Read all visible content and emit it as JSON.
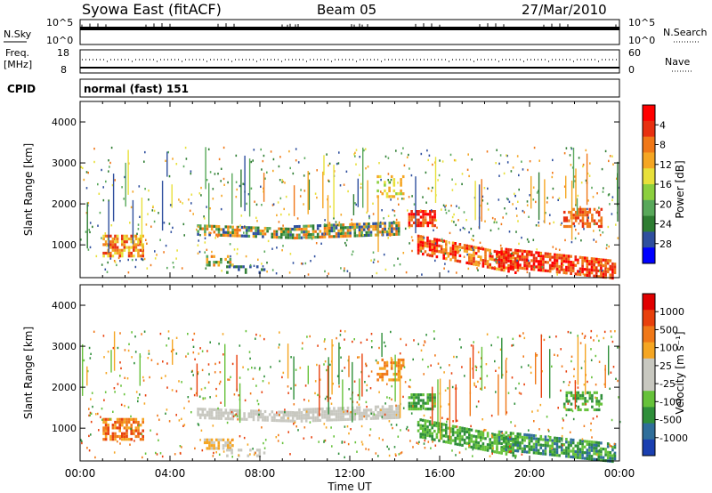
{
  "header": {
    "title": "Syowa East (fitACF)",
    "beam": "Beam 05",
    "date": "27/Mar/2010"
  },
  "noise_panel": {
    "left_label": "N.Sky",
    "right_label": "N.Search",
    "left_ticks": [
      "10^5",
      "10^0"
    ],
    "right_ticks": [
      "10^5",
      "10^0"
    ]
  },
  "freq_panel": {
    "left_label_line1": "Freq.",
    "left_label_line2": "[MHz]",
    "left_ticks": [
      "18",
      "8"
    ],
    "right_ticks": [
      "60",
      "0"
    ],
    "right_label": "Nave"
  },
  "cpid_panel": {
    "left_label": "CPID",
    "value": "normal (fast) 151"
  },
  "chart_data": [
    {
      "type": "heatmap",
      "name": "power",
      "ylabel": "Slant Range [km]",
      "yticks": [
        "1000",
        "2000",
        "3000",
        "4000"
      ],
      "ylim": [
        200,
        4500
      ],
      "xlim_hours": [
        0,
        24
      ],
      "colorbar_label": "Power [dB]",
      "colorbar_ticks": [
        "4",
        "8",
        "12",
        "16",
        "20",
        "24",
        "28"
      ],
      "colors": [
        "#0000ff",
        "#2f4f9e",
        "#2e7d32",
        "#58a85a",
        "#8ccf3e",
        "#e8e03a",
        "#f5a623",
        "#f07818",
        "#e83010",
        "#ff0000"
      ]
    },
    {
      "type": "heatmap",
      "name": "velocity",
      "ylabel": "Slant Range [km]",
      "yticks": [
        "1000",
        "2000",
        "3000",
        "4000"
      ],
      "ylim": [
        200,
        4500
      ],
      "xlim_hours": [
        0,
        24
      ],
      "xticks": [
        "00:00",
        "04:00",
        "08:00",
        "12:00",
        "16:00",
        "20:00",
        "00:00"
      ],
      "xlabel": "Time UT",
      "colorbar_label": "Velocity [m s⁻¹]",
      "colorbar_ticks": [
        "1000",
        "500",
        "100",
        "25",
        "-25",
        "-100",
        "-500",
        "-1000"
      ],
      "colors": [
        "#1a3fb0",
        "#2f6e9a",
        "#2f8f3a",
        "#66c23a",
        "#c8c8c0",
        "#c8c8c0",
        "#f5a623",
        "#f07818",
        "#e8400c",
        "#e00000"
      ]
    }
  ]
}
